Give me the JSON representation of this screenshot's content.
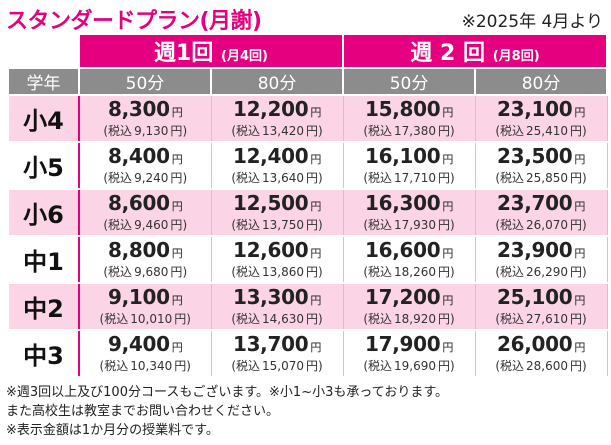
{
  "title": "スタンダードプラン(月謝)",
  "date_note": "※2025年 4月より",
  "header": {
    "group1": {
      "main": "週1回",
      "sub": "(月4回)"
    },
    "group2": {
      "main": "週 2 回",
      "sub": "(月8回)"
    },
    "grade_label": "学年",
    "durations": [
      "50分",
      "80分",
      "50分",
      "80分"
    ]
  },
  "yen": "円",
  "tax_prefix": "(税込",
  "rows": [
    {
      "grade": "小4",
      "cells": [
        {
          "price": "8,300",
          "tax": "9,130"
        },
        {
          "price": "12,200",
          "tax": "13,420"
        },
        {
          "price": "15,800",
          "tax": "17,380"
        },
        {
          "price": "23,100",
          "tax": "25,410"
        }
      ]
    },
    {
      "grade": "小5",
      "cells": [
        {
          "price": "8,400",
          "tax": "9,240"
        },
        {
          "price": "12,400",
          "tax": "13,640"
        },
        {
          "price": "16,100",
          "tax": "17,710"
        },
        {
          "price": "23,500",
          "tax": "25,850"
        }
      ]
    },
    {
      "grade": "小6",
      "cells": [
        {
          "price": "8,600",
          "tax": "9,460"
        },
        {
          "price": "12,500",
          "tax": "13,750"
        },
        {
          "price": "16,300",
          "tax": "17,930"
        },
        {
          "price": "23,700",
          "tax": "26,070"
        }
      ]
    },
    {
      "grade": "中1",
      "cells": [
        {
          "price": "8,800",
          "tax": "9,680"
        },
        {
          "price": "12,600",
          "tax": "13,860"
        },
        {
          "price": "16,600",
          "tax": "18,260"
        },
        {
          "price": "23,900",
          "tax": "26,290"
        }
      ]
    },
    {
      "grade": "中2",
      "cells": [
        {
          "price": "9,100",
          "tax": "10,010"
        },
        {
          "price": "13,300",
          "tax": "14,630"
        },
        {
          "price": "17,200",
          "tax": "18,920"
        },
        {
          "price": "25,100",
          "tax": "27,610"
        }
      ]
    },
    {
      "grade": "中3",
      "cells": [
        {
          "price": "9,400",
          "tax": "10,340"
        },
        {
          "price": "13,700",
          "tax": "15,070"
        },
        {
          "price": "17,900",
          "tax": "19,690"
        },
        {
          "price": "26,000",
          "tax": "28,600"
        }
      ]
    }
  ],
  "notes": [
    "※週3回以上及び100分コースもございます。※小1~小3も承っております。",
    "また高校生は教室までお問い合わせください。",
    "※表示金額は1か月分の授業料です。"
  ],
  "colors": {
    "accent": "#e4007f",
    "header_gray": "#8c8c8c",
    "row_pink": "#fbd4e6"
  }
}
